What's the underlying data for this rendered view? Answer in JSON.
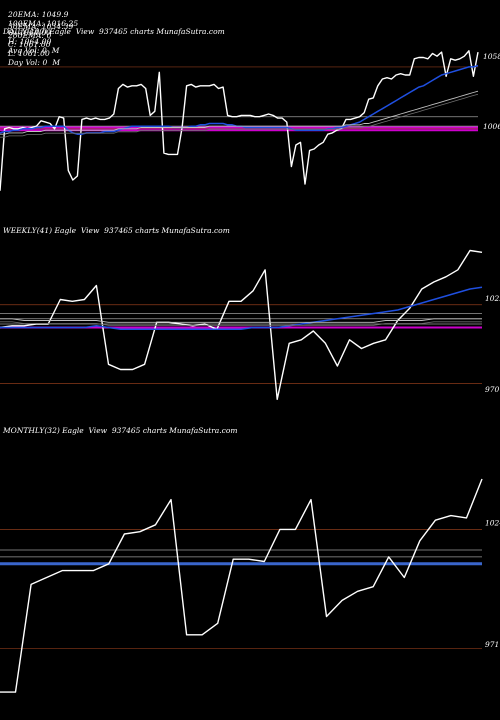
{
  "header": {
    "row1": [
      {
        "label": "20EMA:",
        "value": "1049.9"
      },
      {
        "label": "100EMA:",
        "value": "1016.25"
      },
      {
        "label": "O:",
        "value": "1064.00"
      },
      {
        "label": "H:",
        "value": "1064.00"
      },
      {
        "label": "Avg Vol:",
        "value": "0  M"
      }
    ],
    "row2": [
      {
        "label": "30EMA:",
        "value": "1034.39"
      },
      {
        "label": "200EMA:",
        "value": "0"
      },
      {
        "label": "C:",
        "value": "1061.00"
      },
      {
        "label": "L:",
        "value": "1061.00"
      },
      {
        "label": "Day Vol:",
        "value": "0  M"
      }
    ]
  },
  "colors": {
    "price": "#ffffff",
    "ema_fast": "#1f4fe0",
    "ema_slow": "#c0c0c0",
    "support": "#cc00cc",
    "level_line": "#8b3a1a",
    "avg_band": "#3a66cc"
  },
  "chart_data": [
    {
      "type": "line",
      "title": "DAILY(100) Eagle  View  937465 charts MunafaSutra.com",
      "right_labels": [
        "1058",
        "1006"
      ],
      "ylim": [
        940,
        1070
      ],
      "levels": [
        1050,
        1013,
        1006,
        1004
      ],
      "support": [
        1005,
        1003
      ],
      "series": [
        {
          "role": "price",
          "values": [
            958,
            1004,
            1005,
            1004,
            1004,
            1005,
            1004,
            1005,
            1006,
            1010,
            1009,
            1008,
            1004,
            1013,
            1012,
            973,
            966,
            969,
            1011,
            1012,
            1011,
            1012,
            1011,
            1011,
            1012,
            1015,
            1034,
            1037,
            1035,
            1036,
            1036,
            1037,
            1034,
            1014,
            1017,
            1046,
            986,
            985,
            985,
            985,
            1005,
            1036,
            1037,
            1035,
            1036,
            1036,
            1036,
            1037,
            1034,
            1035,
            1014,
            1013,
            1013,
            1014,
            1014,
            1014,
            1013,
            1013,
            1014,
            1015,
            1014,
            1012,
            1012,
            1009,
            976,
            992,
            994,
            963,
            988,
            989,
            992,
            994,
            1000,
            1001,
            1003,
            1004,
            1011,
            1011,
            1012,
            1013,
            1016,
            1026,
            1027,
            1036,
            1041,
            1042,
            1041,
            1044,
            1045,
            1044,
            1044,
            1056,
            1057,
            1057,
            1056,
            1060,
            1058,
            1061,
            1043,
            1056,
            1055,
            1056,
            1058,
            1062,
            1043,
            1061
          ]
        },
        {
          "role": "ema_fast",
          "values": [
            1001,
            1002,
            1002,
            1003,
            1003,
            1004,
            1004,
            1004,
            1005,
            1005,
            1006,
            1006,
            1006,
            1006,
            1006,
            1003,
            1001,
            1000,
            1000,
            1001,
            1001,
            1001,
            1001,
            1002,
            1002,
            1002,
            1003,
            1004,
            1005,
            1006,
            1006,
            1006,
            1006,
            1006,
            1006,
            1006,
            1006,
            1006,
            1005,
            1005,
            1005,
            1005,
            1006,
            1006,
            1007,
            1007,
            1008,
            1008,
            1008,
            1008,
            1007,
            1007,
            1006,
            1006,
            1005,
            1005,
            1005,
            1005,
            1005,
            1005,
            1005,
            1005,
            1005,
            1005,
            1004,
            1003,
            1003,
            1003,
            1003,
            1003,
            1003,
            1003,
            1004,
            1004,
            1005,
            1005,
            1006,
            1007,
            1008,
            1009,
            1011,
            1013,
            1015,
            1017,
            1019,
            1021,
            1023,
            1025,
            1027,
            1029,
            1031,
            1033,
            1035,
            1036,
            1038,
            1040,
            1042,
            1044,
            1045,
            1046,
            1047,
            1048,
            1049,
            1050,
            1050,
            1051
          ]
        },
        {
          "role": "ema_slow",
          "values": [
            1000,
            1000,
            1001,
            1001,
            1001,
            1001,
            1002,
            1002,
            1002,
            1002,
            1003,
            1003,
            1003,
            1003,
            1003,
            1003,
            1003,
            1003,
            1003,
            1003,
            1003,
            1003,
            1003,
            1003,
            1003,
            1003,
            1004,
            1004,
            1004,
            1004,
            1004,
            1005,
            1005,
            1005,
            1005,
            1005,
            1005,
            1005,
            1005,
            1005,
            1005,
            1005,
            1005,
            1005,
            1005,
            1005,
            1006,
            1006,
            1006,
            1006,
            1006,
            1006,
            1006,
            1006,
            1006,
            1006,
            1006,
            1006,
            1006,
            1006,
            1006,
            1006,
            1006,
            1006,
            1006,
            1006,
            1006,
            1006,
            1006,
            1006,
            1006,
            1006,
            1006,
            1006,
            1006,
            1006,
            1007,
            1007,
            1007,
            1007,
            1008,
            1008,
            1009,
            1010,
            1011,
            1012,
            1013,
            1014,
            1015,
            1016,
            1017,
            1018,
            1019,
            1020,
            1021,
            1022,
            1023,
            1024,
            1025,
            1026,
            1027,
            1028,
            1029,
            1030,
            1031,
            1032
          ]
        }
      ]
    },
    {
      "type": "line",
      "title": "WEEKLY(41) Eagle  View  937465 charts MunafaSutra.com",
      "right_labels": [
        "1022",
        "970"
      ],
      "ylim": [
        955,
        1055
      ],
      "levels": [
        1018,
        1013,
        1010,
        1007,
        973
      ],
      "support": [
        1005
      ],
      "series": [
        {
          "role": "price",
          "values": [
            1005,
            1006,
            1006,
            1007,
            1007,
            1021,
            1020,
            1021,
            1029,
            984,
            981,
            981,
            984,
            1008,
            1008,
            1007,
            1006,
            1007,
            1004,
            1020,
            1020,
            1026,
            1038,
            964,
            996,
            998,
            1003,
            996,
            983,
            998,
            993,
            996,
            998,
            1009,
            1016,
            1027,
            1031,
            1034,
            1038,
            1049,
            1048
          ]
        },
        {
          "role": "ema_fast",
          "values": [
            1005,
            1005,
            1005,
            1005,
            1005,
            1005,
            1005,
            1005,
            1006,
            1005,
            1004,
            1004,
            1004,
            1004,
            1004,
            1004,
            1004,
            1004,
            1004,
            1004,
            1004,
            1005,
            1005,
            1005,
            1006,
            1007,
            1008,
            1009,
            1010,
            1011,
            1012,
            1013,
            1014,
            1015,
            1017,
            1019,
            1021,
            1023,
            1025,
            1027,
            1028
          ]
        },
        {
          "role": "ema_slow",
          "values": [
            1010,
            1010,
            1009,
            1009,
            1009,
            1009,
            1009,
            1009,
            1009,
            1008,
            1008,
            1008,
            1008,
            1008,
            1008,
            1008,
            1008,
            1008,
            1008,
            1008,
            1008,
            1008,
            1008,
            1008,
            1008,
            1008,
            1008,
            1008,
            1008,
            1008,
            1008,
            1008,
            1009,
            1009,
            1009,
            1009,
            1010,
            1010,
            1010,
            1010,
            1010
          ]
        }
      ]
    },
    {
      "type": "line",
      "title": "MONTHLY(32) Eagle  View  937465 charts MunafaSutra.com",
      "right_labels": [
        "1024",
        "971"
      ],
      "ylim": [
        940,
        1060
      ],
      "levels": [
        1021,
        1012,
        1009,
        969
      ],
      "support": [
        1006
      ],
      "series": [
        {
          "role": "price",
          "values": [
            950,
            950,
            997,
            1000,
            1003,
            1003,
            1003,
            1006,
            1019,
            1020,
            1023,
            1034,
            975,
            975,
            980,
            1008,
            1008,
            1007,
            1021,
            1021,
            1034,
            983,
            990,
            994,
            996,
            1009,
            1000,
            1016,
            1025,
            1027,
            1026,
            1043
          ]
        },
        {
          "role": "avg_band",
          "values": [
            1006,
            1006,
            1006,
            1006,
            1006,
            1006,
            1006,
            1006,
            1006,
            1006,
            1006,
            1006,
            1006,
            1006,
            1006,
            1006,
            1006,
            1006,
            1006,
            1006,
            1006,
            1006,
            1006,
            1006,
            1006,
            1006,
            1006,
            1006,
            1006,
            1006,
            1006,
            1006
          ]
        }
      ]
    }
  ]
}
